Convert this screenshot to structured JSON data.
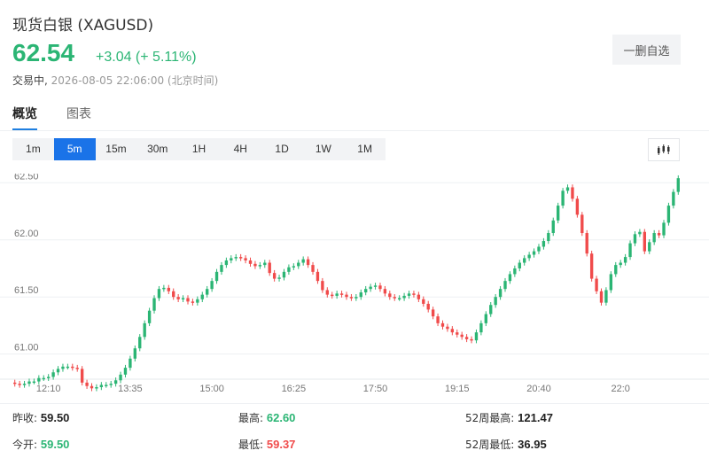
{
  "header": {
    "title": "现货白银 (XAGUSD)",
    "price": "62.54",
    "change": "+3.04 (+ 5.11%)",
    "status_label": "交易中,",
    "timestamp": "2026-08-05 22:06:00 (北京时间)",
    "watchlist_button": "一删自选"
  },
  "tabs": [
    "概览",
    "图表"
  ],
  "periods": [
    "1m",
    "5m",
    "15m",
    "30m",
    "1H",
    "4H",
    "1D",
    "1W",
    "1M"
  ],
  "active_period": "5m",
  "stats": {
    "prev_close_label": "昨收:",
    "prev_close": "59.50",
    "open_label": "今开:",
    "open": "59.50",
    "high_label": "最高:",
    "high": "62.60",
    "low_label": "最低:",
    "low": "59.37",
    "w52_high_label": "52周最高:",
    "w52_high": "121.47",
    "w52_low_label": "52周最低:",
    "w52_low": "36.95"
  },
  "colors": {
    "up": "#2bb574",
    "down": "#f04b4b",
    "accent": "#1a73e8"
  },
  "chart_data": {
    "type": "candlestick",
    "y_ticks": [
      "62.50",
      "62.00",
      "61.50",
      "61.00"
    ],
    "y_tick_values": [
      62.5,
      62.0,
      61.5,
      61.0
    ],
    "x_ticks": [
      "12:10",
      "13:35",
      "15:00",
      "16:25",
      "17:50",
      "19:15",
      "20:40",
      "22:0"
    ],
    "x_tick_index": [
      7,
      24,
      41,
      58,
      75,
      92,
      109,
      126
    ],
    "ylim": [
      60.78,
      62.58
    ],
    "close": [
      60.74,
      60.73,
      60.74,
      60.76,
      60.76,
      60.79,
      60.79,
      60.8,
      60.84,
      60.87,
      60.89,
      60.89,
      60.88,
      60.87,
      60.75,
      60.72,
      60.7,
      60.71,
      60.73,
      60.73,
      60.74,
      60.77,
      60.82,
      60.88,
      60.96,
      61.05,
      61.15,
      61.27,
      61.38,
      61.49,
      61.57,
      61.58,
      61.55,
      61.5,
      61.48,
      61.49,
      61.46,
      61.45,
      61.48,
      61.52,
      61.57,
      61.64,
      61.72,
      61.78,
      61.82,
      61.84,
      61.85,
      61.84,
      61.82,
      61.79,
      61.77,
      61.78,
      61.8,
      61.71,
      61.66,
      61.67,
      61.72,
      61.76,
      61.77,
      61.8,
      61.83,
      61.78,
      61.72,
      61.64,
      61.56,
      61.52,
      61.51,
      61.53,
      61.52,
      61.5,
      61.49,
      61.5,
      61.54,
      61.57,
      61.59,
      61.6,
      61.57,
      61.53,
      61.5,
      61.49,
      61.49,
      61.51,
      61.53,
      61.52,
      61.48,
      61.44,
      61.39,
      61.33,
      61.27,
      61.24,
      61.22,
      61.19,
      61.17,
      61.15,
      61.13,
      61.12,
      61.19,
      61.27,
      61.35,
      61.43,
      61.5,
      61.57,
      61.64,
      61.7,
      61.75,
      61.8,
      61.84,
      61.87,
      61.9,
      61.94,
      61.99,
      62.06,
      62.17,
      62.3,
      62.43,
      62.46,
      62.36,
      62.22,
      62.06,
      61.88,
      61.66,
      61.55,
      61.45,
      61.56,
      61.7,
      61.78,
      61.8,
      61.85,
      61.97,
      62.05,
      62.07,
      61.9,
      61.98,
      62.06,
      62.04,
      62.15,
      62.3,
      62.42,
      62.54
    ],
    "open": [
      60.75,
      60.74,
      60.73,
      60.74,
      60.76,
      60.76,
      60.79,
      60.79,
      60.8,
      60.84,
      60.87,
      60.89,
      60.89,
      60.88,
      60.87,
      60.75,
      60.72,
      60.7,
      60.71,
      60.73,
      60.73,
      60.74,
      60.77,
      60.82,
      60.88,
      60.96,
      61.05,
      61.15,
      61.27,
      61.38,
      61.49,
      61.57,
      61.58,
      61.55,
      61.5,
      61.48,
      61.49,
      61.46,
      61.45,
      61.48,
      61.52,
      61.57,
      61.64,
      61.72,
      61.78,
      61.82,
      61.84,
      61.85,
      61.84,
      61.82,
      61.79,
      61.77,
      61.78,
      61.8,
      61.71,
      61.66,
      61.67,
      61.72,
      61.76,
      61.77,
      61.8,
      61.83,
      61.78,
      61.72,
      61.64,
      61.56,
      61.52,
      61.51,
      61.53,
      61.52,
      61.5,
      61.49,
      61.5,
      61.54,
      61.57,
      61.59,
      61.6,
      61.57,
      61.53,
      61.5,
      61.49,
      61.49,
      61.51,
      61.53,
      61.52,
      61.48,
      61.44,
      61.39,
      61.33,
      61.27,
      61.24,
      61.22,
      61.19,
      61.17,
      61.15,
      61.13,
      61.12,
      61.19,
      61.27,
      61.35,
      61.43,
      61.5,
      61.57,
      61.64,
      61.7,
      61.75,
      61.8,
      61.84,
      61.87,
      61.9,
      61.94,
      61.99,
      62.06,
      62.17,
      62.3,
      62.43,
      62.46,
      62.36,
      62.22,
      62.06,
      61.88,
      61.66,
      61.55,
      61.45,
      61.56,
      61.7,
      61.78,
      61.8,
      61.85,
      61.97,
      62.05,
      62.07,
      61.9,
      61.98,
      62.06,
      62.04,
      62.15,
      62.3,
      62.42
    ]
  }
}
